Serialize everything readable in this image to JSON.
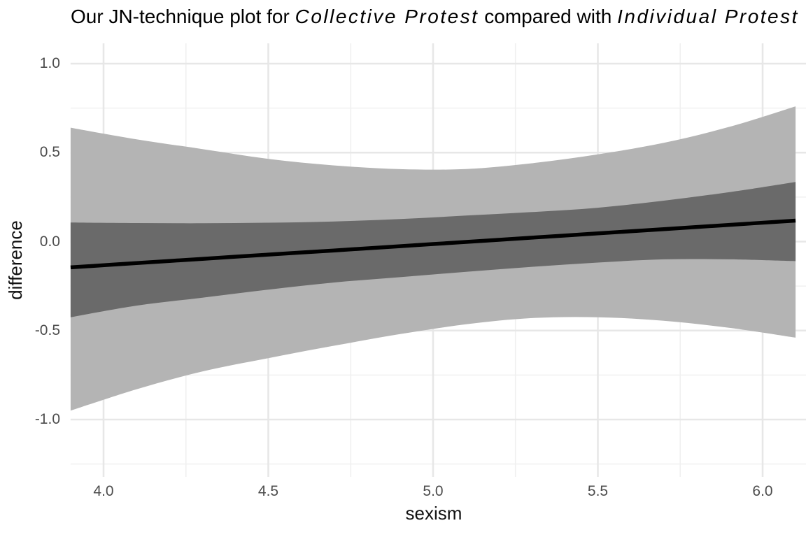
{
  "title": {
    "segments": [
      {
        "text": "Our JN-technique plot for ",
        "italic": false
      },
      {
        "text": "Collective Protest",
        "italic": true
      },
      {
        "text": " compared with ",
        "italic": false
      },
      {
        "text": "Individual Protest",
        "italic": true
      }
    ]
  },
  "chart_data": {
    "type": "area",
    "title": "Our JN-technique plot for Collective Protest compared with Individual Protest",
    "xlabel": "sexism",
    "ylabel": "difference",
    "legend": "none",
    "grid": "major and minor, light gray on white",
    "xlim": [
      3.9,
      6.132
    ],
    "ylim": [
      -1.322,
      1.114
    ],
    "x_ticks": [
      4.0,
      4.5,
      5.0,
      5.5,
      6.0
    ],
    "x_tick_labels": [
      "4.0",
      "4.5",
      "5.0",
      "5.5",
      "6.0"
    ],
    "x_minor_ticks": [
      4.25,
      4.75,
      5.25,
      5.75
    ],
    "y_ticks": [
      1.0,
      0.5,
      0.0,
      -0.5,
      -1.0
    ],
    "y_tick_labels": [
      "1.0",
      "0.5",
      "0.0",
      "-0.5",
      "-1.0"
    ],
    "y_minor_ticks": [
      0.75,
      0.25,
      -0.25,
      -0.75,
      -1.25
    ],
    "x": [
      3.9,
      4.1,
      4.3,
      4.5,
      4.7,
      4.9,
      5.1,
      5.3,
      5.5,
      5.7,
      5.9,
      6.1
    ],
    "series": [
      {
        "name": "difference_line",
        "values": [
          -0.145,
          -0.121,
          -0.097,
          -0.073,
          -0.05,
          -0.026,
          -0.002,
          0.022,
          0.046,
          0.07,
          0.094,
          0.118
        ]
      },
      {
        "name": "inner_ci_upper",
        "values": [
          0.107,
          0.104,
          0.103,
          0.106,
          0.113,
          0.127,
          0.146,
          0.166,
          0.19,
          0.23,
          0.278,
          0.335
        ]
      },
      {
        "name": "inner_ci_lower",
        "values": [
          -0.425,
          -0.36,
          -0.315,
          -0.27,
          -0.23,
          -0.2,
          -0.17,
          -0.142,
          -0.118,
          -0.1,
          -0.1,
          -0.11
        ]
      },
      {
        "name": "outer_ci_upper",
        "values": [
          0.64,
          0.575,
          0.52,
          0.465,
          0.428,
          0.407,
          0.408,
          0.44,
          0.49,
          0.555,
          0.645,
          0.76
        ]
      },
      {
        "name": "outer_ci_lower",
        "values": [
          -0.95,
          -0.83,
          -0.73,
          -0.655,
          -0.585,
          -0.52,
          -0.465,
          -0.43,
          -0.425,
          -0.445,
          -0.485,
          -0.54
        ]
      }
    ],
    "colors": {
      "line": "#000000",
      "inner_band": "#6a6a6a",
      "outer_band": "#b4b4b4",
      "grid_major": "#e7e7e7",
      "grid_minor": "#f0f0f0",
      "tick_label": "#4d4d4d",
      "axis_title": "#111111",
      "background": "#ffffff"
    }
  }
}
